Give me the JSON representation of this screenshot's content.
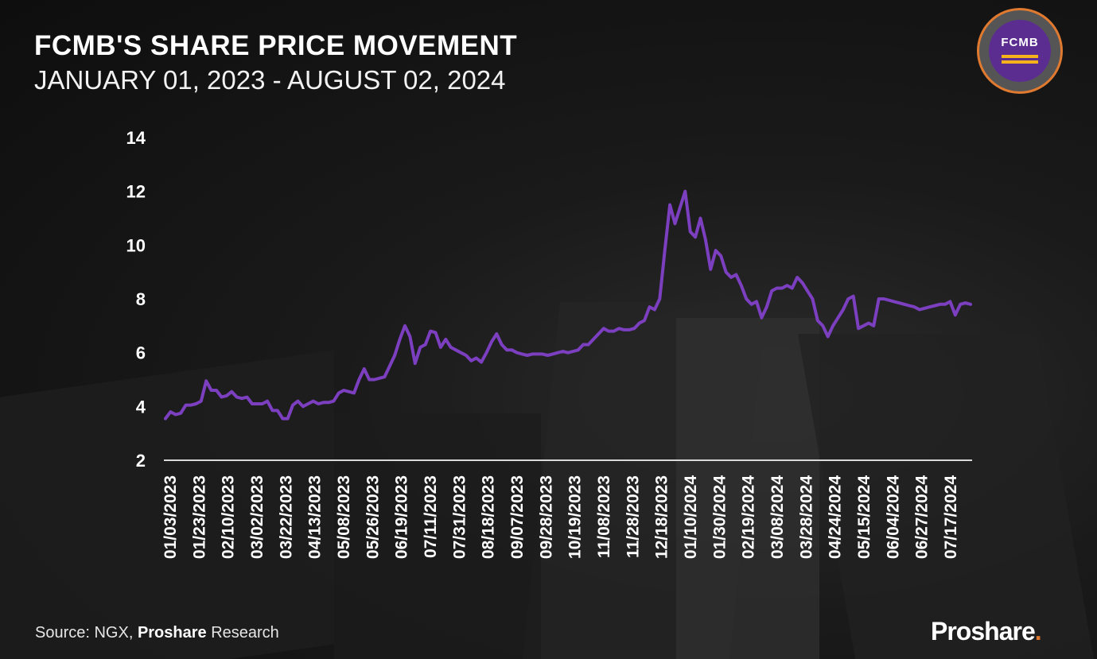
{
  "header": {
    "title": "FCMB'S SHARE PRICE MOVEMENT",
    "subtitle": "JANUARY 01, 2023 - AUGUST 02, 2024"
  },
  "logo": {
    "text": "FCMB"
  },
  "footer": {
    "source_prefix": "Source: NGX, ",
    "source_bold": "Proshare",
    "source_suffix": " Research",
    "brand": "Proshare",
    "brand_dot": "."
  },
  "colors": {
    "line": "#7b3fc0",
    "axis": "#d9d9d9",
    "logo_purple": "#5c2d91",
    "logo_ring": "#e07a30",
    "logo_bars": "#f5b21a"
  },
  "chart_data": {
    "type": "line",
    "title": "FCMB'S SHARE PRICE MOVEMENT",
    "subtitle": "JANUARY 01, 2023 - AUGUST 02, 2024",
    "xlabel": "",
    "ylabel": "",
    "ylim": [
      2,
      14
    ],
    "yticks": [
      2,
      4,
      6,
      8,
      10,
      12,
      14
    ],
    "grid": false,
    "legend": "none",
    "x_tick_labels": [
      "01/03/2023",
      "01/23/2023",
      "02/10/2023",
      "03/02/2023",
      "03/22/2023",
      "04/13/2023",
      "05/08/2023",
      "05/26/2023",
      "06/19/2023",
      "07/11/2023",
      "07/31/2023",
      "08/18/2023",
      "09/07/2023",
      "09/28/2023",
      "10/19/2023",
      "11/08/2023",
      "11/28/2023",
      "12/18/2023",
      "01/10/2024",
      "01/30/2024",
      "02/19/2024",
      "03/08/2024",
      "03/28/2024",
      "04/24/2024",
      "05/15/2024",
      "06/04/2024",
      "06/27/2024",
      "07/17/2024"
    ],
    "series": [
      {
        "values": [
          3.55,
          3.8,
          3.7,
          3.75,
          4.05,
          4.05,
          4.1,
          4.2,
          4.95,
          4.6,
          4.6,
          4.35,
          4.4,
          4.55,
          4.35,
          4.3,
          4.35,
          4.1,
          4.1,
          4.1,
          4.2,
          3.85,
          3.85,
          3.55,
          3.55,
          4.05,
          4.2,
          4.0,
          4.1,
          4.2,
          4.1,
          4.15,
          4.15,
          4.2,
          4.5,
          4.6,
          4.55,
          4.5,
          5.0,
          5.4,
          5.0,
          5.0,
          5.05,
          5.1,
          5.5,
          5.9,
          6.5,
          7.0,
          6.6,
          5.6,
          6.2,
          6.3,
          6.8,
          6.75,
          6.2,
          6.5,
          6.2,
          6.1,
          6.0,
          5.9,
          5.7,
          5.8,
          5.65,
          6.0,
          6.4,
          6.7,
          6.3,
          6.1,
          6.1,
          6.0,
          5.95,
          5.9,
          5.95,
          5.95,
          5.95,
          5.9,
          5.95,
          6.0,
          6.05,
          6.0,
          6.05,
          6.1,
          6.3,
          6.3,
          6.5,
          6.7,
          6.9,
          6.8,
          6.8,
          6.9,
          6.85,
          6.85,
          6.9,
          7.1,
          7.2,
          7.7,
          7.6,
          8.0,
          9.8,
          11.5,
          10.8,
          11.4,
          12.0,
          10.5,
          10.3,
          11.0,
          10.2,
          9.1,
          9.8,
          9.6,
          9.0,
          8.8,
          8.9,
          8.5,
          8.0,
          7.8,
          7.9,
          7.3,
          7.7,
          8.3,
          8.4,
          8.4,
          8.5,
          8.4,
          8.8,
          8.6,
          8.3,
          8.0,
          7.2,
          7.0,
          6.6,
          7.0,
          7.3,
          7.6,
          8.0,
          8.1,
          6.9,
          7.0,
          7.1,
          7.0,
          8.0,
          8.0,
          7.95,
          7.9,
          7.85,
          7.8,
          7.75,
          7.7,
          7.6,
          7.65,
          7.7,
          7.75,
          7.8,
          7.8,
          7.9,
          7.4,
          7.8,
          7.85,
          7.8
        ]
      }
    ]
  }
}
